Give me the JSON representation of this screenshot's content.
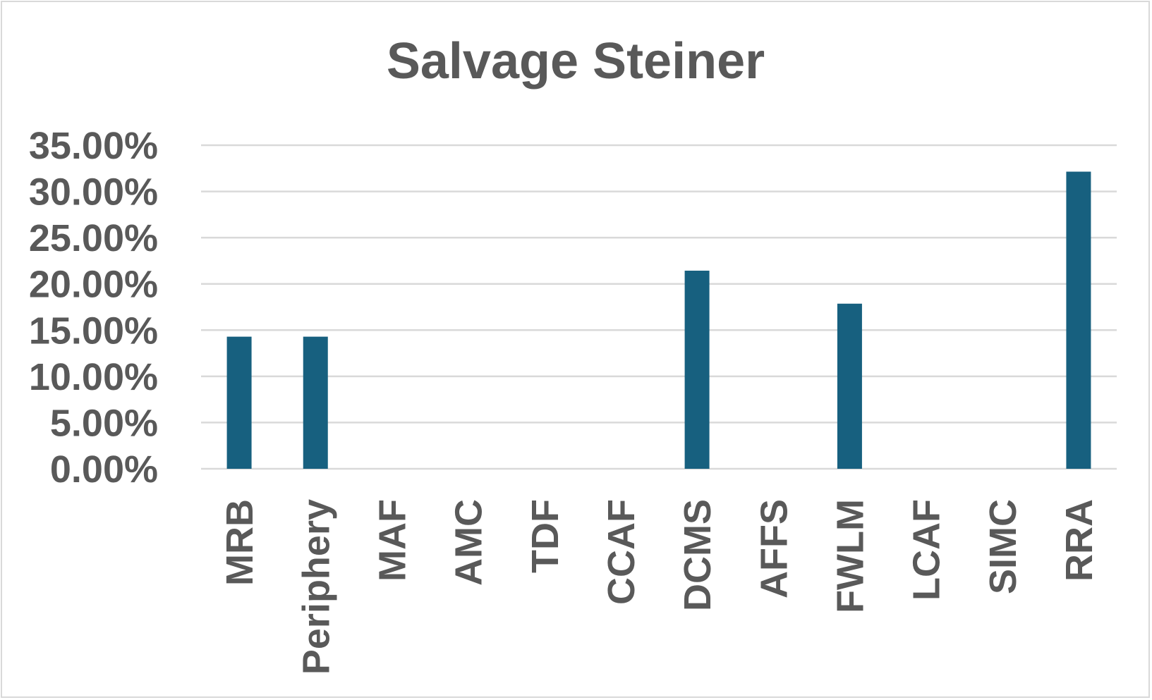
{
  "chart_data": {
    "type": "bar",
    "title": "Salvage Steiner",
    "xlabel": "",
    "ylabel": "",
    "categories": [
      "MRB",
      "Periphery",
      "MAF",
      "AMC",
      "TDF",
      "CCAF",
      "DCMS",
      "AFFS",
      "FWLM",
      "LCAF",
      "SIMC",
      "RRA"
    ],
    "values": [
      14.29,
      14.29,
      0,
      0,
      0,
      0,
      21.43,
      0,
      17.86,
      0,
      0,
      32.14
    ],
    "ylim": [
      0,
      35
    ],
    "yticks": [
      0,
      5,
      10,
      15,
      20,
      25,
      30,
      35
    ],
    "ytick_labels": [
      "0.00%",
      "5.00%",
      "10.00%",
      "15.00%",
      "20.00%",
      "25.00%",
      "30.00%",
      "35.00%"
    ],
    "grid": true,
    "legend": "none",
    "colors": {
      "bar": "#17607f",
      "grid": "#d9d9d9",
      "text": "#595959"
    }
  }
}
